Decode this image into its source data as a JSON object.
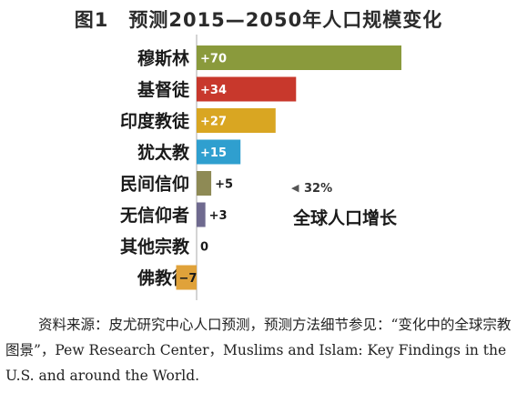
{
  "title": "图1　预测2015—2050年人口规模变化",
  "chart_data": {
    "type": "bar",
    "orientation": "horizontal",
    "categories": [
      "穆斯林",
      "基督徒",
      "印度教徒",
      "犹太教",
      "民间信仰",
      "无信仰者",
      "其他宗教",
      "佛教徒"
    ],
    "values": [
      70,
      34,
      27,
      15,
      5,
      3,
      0,
      -7
    ],
    "labels": [
      "+70",
      "+34",
      "+27",
      "+15",
      "+5",
      "+3",
      "0",
      "−7"
    ],
    "colors": [
      "#8a9a3c",
      "#c8382c",
      "#d9a622",
      "#2f9fcf",
      "#8e8a55",
      "#6f6a8f",
      "#999999",
      "#e0a23a"
    ],
    "unit": "%",
    "xlim": [
      -7,
      70
    ],
    "annotation": {
      "marker": "◀",
      "value": "32%",
      "label": "全球人口增长"
    }
  },
  "source": "资料来源：皮尤研究中心人口预测，预测方法细节参见：“变化中的全球宗教图景”，Pew Research Center，Muslims and Islam: Key Findings in the U.S. and around the World."
}
